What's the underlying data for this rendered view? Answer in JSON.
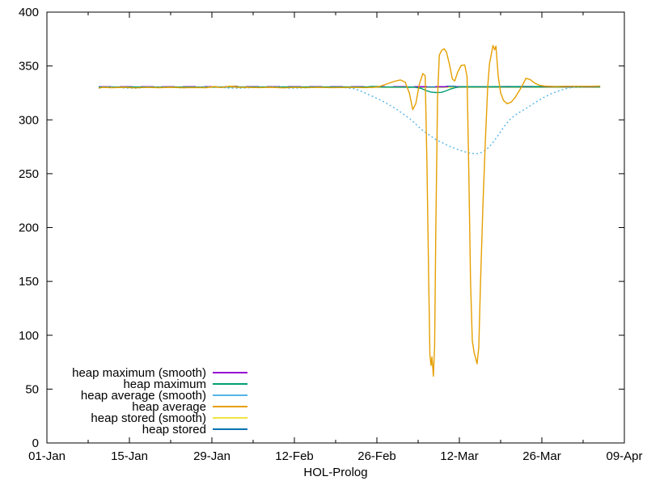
{
  "chart_data": {
    "type": "line",
    "xlabel": "HOL-Prolog",
    "ylabel": "",
    "background": "#ffffff",
    "axis_color": "#000000",
    "xlim_days": [
      0,
      98
    ],
    "ylim": [
      0,
      400
    ],
    "y_ticks": [
      0,
      50,
      100,
      150,
      200,
      250,
      300,
      350,
      400
    ],
    "x_ticks": [
      {
        "day": 0,
        "label": "01-Jan"
      },
      {
        "day": 14,
        "label": "15-Jan"
      },
      {
        "day": 28,
        "label": "29-Jan"
      },
      {
        "day": 42,
        "label": "12-Feb"
      },
      {
        "day": 56,
        "label": "26-Feb"
      },
      {
        "day": 70,
        "label": "12-Mar"
      },
      {
        "day": 84,
        "label": "26-Mar"
      },
      {
        "day": 98,
        "label": "09-Apr"
      }
    ],
    "x_minor_ticks_days": [
      7,
      21,
      35,
      49,
      63,
      77,
      91
    ],
    "legend_position": "bottom-left",
    "draw_order": [
      "heap stored (smooth)",
      "heap stored",
      "heap maximum (smooth)",
      "heap maximum",
      "heap average (smooth)",
      "heap average"
    ],
    "series": [
      {
        "name": "heap maximum (smooth)",
        "color": "#9400d3",
        "dash": "16,10",
        "points": [
          [
            8.8,
            330.7
          ],
          [
            93.9,
            330.9
          ]
        ]
      },
      {
        "name": "heap maximum",
        "color": "#009e73",
        "dash": "",
        "points": [
          [
            8.8,
            330.4
          ],
          [
            20,
            330.4
          ],
          [
            35,
            330.5
          ],
          [
            50,
            330.5
          ],
          [
            54.5,
            330.6
          ],
          [
            55,
            331.0
          ],
          [
            56.3,
            331.0
          ],
          [
            56.8,
            330.5
          ],
          [
            62.5,
            330.3
          ],
          [
            63.6,
            329.0
          ],
          [
            64.3,
            327.3
          ],
          [
            65.2,
            325.8
          ],
          [
            66.0,
            325.3
          ],
          [
            66.9,
            325.5
          ],
          [
            67.7,
            326.8
          ],
          [
            68.5,
            328.6
          ],
          [
            69.4,
            330.0
          ],
          [
            70.2,
            330.8
          ],
          [
            75,
            330.8
          ],
          [
            80,
            330.9
          ],
          [
            85,
            330.9
          ],
          [
            90,
            331.0
          ],
          [
            93.9,
            331.0
          ]
        ]
      },
      {
        "name": "heap average (smooth)",
        "color": "#56b4e9",
        "dash": "2,3",
        "points": [
          [
            8.8,
            329.3
          ],
          [
            10,
            330.6
          ],
          [
            11.5,
            330.8
          ],
          [
            13,
            329.6
          ],
          [
            15,
            329.3
          ],
          [
            17,
            330.2
          ],
          [
            20,
            330.4
          ],
          [
            23,
            329.6
          ],
          [
            26,
            330.5
          ],
          [
            28.5,
            330.9
          ],
          [
            30.5,
            329.5
          ],
          [
            33,
            329.4
          ],
          [
            36,
            330.2
          ],
          [
            39,
            330.5
          ],
          [
            41,
            329.4
          ],
          [
            43.5,
            329.6
          ],
          [
            46,
            330.2
          ],
          [
            48.5,
            330.0
          ],
          [
            50.4,
            330.0
          ],
          [
            52.4,
            328.7
          ],
          [
            55.0,
            322.5
          ],
          [
            57.0,
            317.4
          ],
          [
            59.3,
            310.0
          ],
          [
            61.6,
            301.0
          ],
          [
            63.8,
            290.0
          ],
          [
            66.1,
            281.4
          ],
          [
            68.5,
            275.0
          ],
          [
            70.7,
            270.6
          ],
          [
            72.0,
            268.8
          ],
          [
            73.0,
            268.6
          ],
          [
            73.8,
            269.8
          ],
          [
            74.6,
            272.5
          ],
          [
            75.5,
            277.5
          ],
          [
            76.5,
            285.0
          ],
          [
            77.5,
            293.0
          ],
          [
            78.5,
            300.0
          ],
          [
            79.5,
            304.5
          ],
          [
            80.5,
            308.0
          ],
          [
            81.6,
            311.5
          ],
          [
            83.0,
            316.5
          ],
          [
            84.4,
            321.0
          ],
          [
            85.8,
            324.8
          ],
          [
            87.2,
            327.5
          ],
          [
            88.5,
            329.5
          ],
          [
            90,
            330.8
          ],
          [
            92,
            331.0
          ],
          [
            93.9,
            331.2
          ]
        ]
      },
      {
        "name": "heap average",
        "color": "#e69f00",
        "dash": "",
        "points": [
          [
            8.8,
            329.5
          ],
          [
            9.5,
            330.2
          ],
          [
            11,
            329.8
          ],
          [
            13,
            330.2
          ],
          [
            15,
            329.7
          ],
          [
            17,
            330.1
          ],
          [
            19,
            329.8
          ],
          [
            21,
            330.2
          ],
          [
            23,
            329.8
          ],
          [
            25,
            330.0
          ],
          [
            27,
            329.8
          ],
          [
            28.4,
            330.9
          ],
          [
            29.5,
            330.0
          ],
          [
            30.9,
            331.0
          ],
          [
            32.3,
            330.1
          ],
          [
            34,
            330.2
          ],
          [
            36,
            329.9
          ],
          [
            38,
            330.2
          ],
          [
            40,
            329.7
          ],
          [
            42,
            330.1
          ],
          [
            44,
            329.9
          ],
          [
            46,
            330.1
          ],
          [
            48,
            329.9
          ],
          [
            50,
            330.0
          ],
          [
            52,
            330.1
          ],
          [
            54,
            329.9
          ],
          [
            55.5,
            330.3
          ],
          [
            56.5,
            331.0
          ],
          [
            57.8,
            333.5
          ],
          [
            59,
            335.8
          ],
          [
            60,
            337.0
          ],
          [
            60.8,
            335.0
          ],
          [
            61.5,
            325.0
          ],
          [
            62.1,
            309.5
          ],
          [
            62.6,
            315.0
          ],
          [
            63.2,
            333.0
          ],
          [
            63.8,
            343.0
          ],
          [
            64.2,
            341.0
          ],
          [
            64.5,
            260.0
          ],
          [
            64.8,
            150.0
          ],
          [
            65.0,
            81.0
          ],
          [
            65.2,
            72.0
          ],
          [
            65.35,
            80.0
          ],
          [
            65.6,
            62.0
          ],
          [
            65.8,
            90.0
          ],
          [
            66.0,
            200.0
          ],
          [
            66.3,
            320.0
          ],
          [
            66.6,
            360.0
          ],
          [
            67.0,
            364.5
          ],
          [
            67.4,
            366.0
          ],
          [
            67.8,
            363.0
          ],
          [
            68.3,
            352.0
          ],
          [
            68.8,
            338.0
          ],
          [
            69.2,
            336.0
          ],
          [
            69.7,
            344.0
          ],
          [
            70.3,
            350.5
          ],
          [
            70.9,
            351.0
          ],
          [
            71.3,
            340.0
          ],
          [
            71.6,
            250.0
          ],
          [
            71.9,
            150.0
          ],
          [
            72.2,
            95.0
          ],
          [
            72.5,
            84.0
          ],
          [
            72.8,
            78.0
          ],
          [
            73.0,
            73.5
          ],
          [
            73.3,
            89.0
          ],
          [
            73.6,
            150.0
          ],
          [
            74.0,
            220.0
          ],
          [
            74.4,
            280.0
          ],
          [
            74.8,
            330.0
          ],
          [
            75.1,
            352.0
          ],
          [
            75.4,
            360.0
          ],
          [
            75.7,
            369.0
          ],
          [
            76.0,
            365.0
          ],
          [
            76.2,
            368.5
          ],
          [
            76.6,
            340.0
          ],
          [
            77.0,
            325.0
          ],
          [
            77.5,
            318.0
          ],
          [
            78.1,
            315.0
          ],
          [
            78.8,
            316.5
          ],
          [
            79.5,
            321.0
          ],
          [
            80.5,
            330.0
          ],
          [
            81.3,
            338.5
          ],
          [
            82.0,
            337.5
          ],
          [
            82.8,
            334.0
          ],
          [
            83.6,
            332.0
          ],
          [
            84.5,
            331.3
          ],
          [
            86,
            330.9
          ],
          [
            88,
            331.1
          ],
          [
            90,
            331.2
          ],
          [
            92,
            331.1
          ],
          [
            93.9,
            331.3
          ]
        ]
      },
      {
        "name": "heap stored (smooth)",
        "color": "#f0e442",
        "dash": "",
        "points": [
          [
            8.8,
            330.1
          ],
          [
            30.4,
            330.1
          ],
          [
            30.9,
            331.4
          ],
          [
            32.3,
            331.4
          ],
          [
            32.8,
            330.1
          ],
          [
            93.9,
            330.2
          ]
        ]
      },
      {
        "name": "heap stored",
        "color": "#0072b2",
        "dash": "",
        "points": [
          [
            8.8,
            330.5
          ],
          [
            67.5,
            330.5
          ],
          [
            67.9,
            331.2
          ],
          [
            69.2,
            331.2
          ],
          [
            69.6,
            330.5
          ],
          [
            93.9,
            330.5
          ]
        ]
      }
    ]
  }
}
